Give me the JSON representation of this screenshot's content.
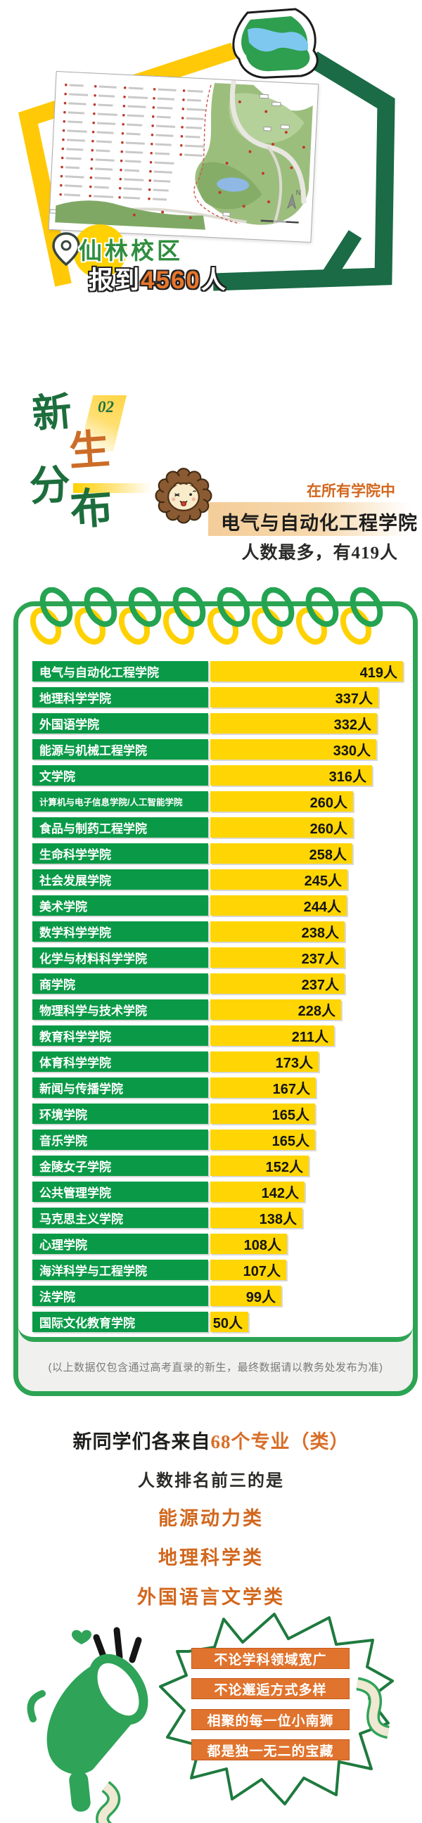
{
  "colors": {
    "frame_green": "#1a6b46",
    "frame_yellow": "#ffc908",
    "notebook_green": "#2ca453",
    "bar_green": "#0a9a47",
    "bar_yellow": "#ffd503",
    "accent_orange": "#d86e28",
    "banner_orange": "#e0732d"
  },
  "hero": {
    "campus_label": "仙林校区",
    "report_prefix": "报到",
    "report_count": "4560",
    "report_suffix": "人",
    "compass_label": "N"
  },
  "section": {
    "badge": "02",
    "title_chars": [
      "新",
      "生",
      "分",
      "布"
    ],
    "callout_intro": "在所有学院中",
    "callout_college": "电气与自动化工程学院",
    "callout_detail": "人数最多，有419人"
  },
  "chart_data": {
    "type": "bar",
    "title": "新生分布",
    "unit": "人",
    "categories": [
      "电气与自动化工程学院",
      "地理科学学院",
      "外国语学院",
      "能源与机械工程学院",
      "文学院",
      "计算机与电子信息学院/人工智能学院",
      "食品与制药工程学院",
      "生命科学学院",
      "社会发展学院",
      "美术学院",
      "数学科学学院",
      "化学与材料科学学院",
      "商学院",
      "物理科学与技术学院",
      "教育科学学院",
      "体育科学学院",
      "新闻与传播学院",
      "环境学院",
      "音乐学院",
      "金陵女子学院",
      "公共管理学院",
      "马克思主义学院",
      "心理学院",
      "海洋科学与工程学院",
      "法学院",
      "国际文化教育学院"
    ],
    "values": [
      419,
      337,
      332,
      330,
      316,
      260,
      260,
      258,
      245,
      244,
      238,
      237,
      237,
      228,
      211,
      173,
      167,
      165,
      165,
      152,
      142,
      138,
      108,
      107,
      99,
      50
    ]
  },
  "note": "(以上数据仅包含通过高考直录的新生，最终数据请以教务处发布为准)",
  "majors": {
    "line1_prefix": "新同学们各来自",
    "line1_highlight": "68个专业（类）",
    "line2": "人数排名前三的是",
    "top3": [
      "能源动力类",
      "地理科学类",
      "外国语言文学类"
    ]
  },
  "outro": {
    "banners": [
      "不论学科领域宽广",
      "不论邂逅方式多样",
      "相聚的每一位小南狮",
      "都是独一无二的宝藏"
    ]
  }
}
